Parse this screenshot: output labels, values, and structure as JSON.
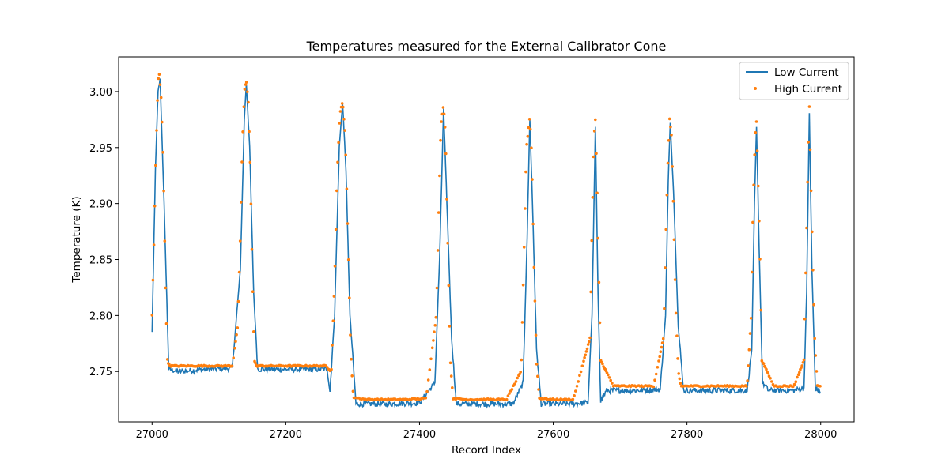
{
  "chart_data": {
    "type": "line",
    "title": "Temperatures measured for the External Calibrator Cone",
    "xlabel": "Record Index",
    "ylabel": "Temperature (K)",
    "xlim": [
      26950,
      28050
    ],
    "ylim": [
      2.705,
      3.031
    ],
    "x_ticks": [
      27000,
      27200,
      27400,
      27600,
      27800,
      28000
    ],
    "y_ticks": [
      2.75,
      2.8,
      2.85,
      2.9,
      2.95,
      3.0
    ],
    "x_tick_labels": [
      "27000",
      "27200",
      "27400",
      "27600",
      "27800",
      "28000"
    ],
    "y_tick_labels": [
      "2.75",
      "2.80",
      "2.85",
      "2.90",
      "2.95",
      "3.00"
    ],
    "grid": false,
    "legend_position": "top-right",
    "peak_indices": [
      27011,
      27141,
      27285,
      27436,
      27565,
      27663,
      27775,
      27904,
      27983
    ],
    "series": [
      {
        "name": "Low Current",
        "style": "line",
        "color": "#1f77b4",
        "x": [
          27000,
          27005,
          27009,
          27012,
          27018,
          27025,
          27040,
          27080,
          27120,
          27132,
          27138,
          27141,
          27146,
          27152,
          27158,
          27180,
          27220,
          27262,
          27266,
          27273,
          27280,
          27285,
          27290,
          27296,
          27305,
          27350,
          27400,
          27423,
          27430,
          27436,
          27441,
          27448,
          27455,
          27500,
          27540,
          27555,
          27561,
          27565,
          27569,
          27575,
          27582,
          27620,
          27652,
          27658,
          27663,
          27667,
          27671,
          27680,
          27720,
          27760,
          27768,
          27772,
          27775,
          27780,
          27787,
          27795,
          27850,
          27890,
          27897,
          27901,
          27904,
          27908,
          27913,
          27922,
          27960,
          27975,
          27979,
          27983,
          27987,
          27992,
          28000
        ],
        "y": [
          2.785,
          2.93,
          3.0,
          3.011,
          2.9,
          2.752,
          2.75,
          2.752,
          2.753,
          2.84,
          2.975,
          3.007,
          2.95,
          2.82,
          2.752,
          2.752,
          2.752,
          2.752,
          2.732,
          2.8,
          2.95,
          2.99,
          2.93,
          2.8,
          2.721,
          2.721,
          2.722,
          2.74,
          2.85,
          2.984,
          2.9,
          2.78,
          2.721,
          2.721,
          2.721,
          2.74,
          2.87,
          2.975,
          2.9,
          2.77,
          2.721,
          2.721,
          2.722,
          2.8,
          2.968,
          2.82,
          2.724,
          2.733,
          2.733,
          2.734,
          2.8,
          2.92,
          2.973,
          2.91,
          2.79,
          2.733,
          2.733,
          2.733,
          2.77,
          2.9,
          2.968,
          2.86,
          2.74,
          2.733,
          2.733,
          2.735,
          2.82,
          2.98,
          2.84,
          2.735,
          2.732
        ]
      },
      {
        "name": "High Current",
        "style": "scatter",
        "color": "#ff7f0e",
        "x": [
          27000,
          27003,
          27006,
          27009,
          27011,
          27014,
          27017,
          27020,
          27023,
          27026,
          27040,
          27060,
          27080,
          27100,
          27120,
          27128,
          27132,
          27135,
          27138,
          27141,
          27144,
          27147,
          27150,
          27153,
          27156,
          27170,
          27200,
          27230,
          27260,
          27268,
          27273,
          27277,
          27281,
          27285,
          27289,
          27293,
          27297,
          27301,
          27320,
          27350,
          27380,
          27410,
          27425,
          27429,
          27432,
          27436,
          27439,
          27442,
          27446,
          27450,
          27470,
          27500,
          27530,
          27552,
          27556,
          27560,
          27565,
          27568,
          27571,
          27575,
          27579,
          27600,
          27630,
          27655,
          27658,
          27661,
          27663,
          27665,
          27668,
          27671,
          27690,
          27720,
          27750,
          27765,
          27768,
          27771,
          27774,
          27777,
          27780,
          27783,
          27787,
          27791,
          27820,
          27860,
          27890,
          27896,
          27899,
          27902,
          27904,
          27906,
          27909,
          27912,
          27930,
          27960,
          27975,
          27978,
          27981,
          27983,
          27985,
          27988,
          27991,
          27995,
          28000
        ],
        "y": [
          2.8,
          2.87,
          2.95,
          3.01,
          3.016,
          2.99,
          2.93,
          2.83,
          2.76,
          2.755,
          2.755,
          2.755,
          2.755,
          2.755,
          2.755,
          2.79,
          2.87,
          2.95,
          3.0,
          3.01,
          2.99,
          2.93,
          2.84,
          2.76,
          2.755,
          2.755,
          2.755,
          2.755,
          2.755,
          2.75,
          2.83,
          2.93,
          2.98,
          2.992,
          2.96,
          2.87,
          2.77,
          2.727,
          2.725,
          2.725,
          2.725,
          2.726,
          2.8,
          2.9,
          2.97,
          2.988,
          2.96,
          2.87,
          2.76,
          2.726,
          2.725,
          2.725,
          2.725,
          2.75,
          2.85,
          2.95,
          2.978,
          2.94,
          2.85,
          2.76,
          2.726,
          2.725,
          2.725,
          2.78,
          2.88,
          2.96,
          2.975,
          2.93,
          2.84,
          2.76,
          2.737,
          2.737,
          2.737,
          2.78,
          2.86,
          2.93,
          2.976,
          2.96,
          2.89,
          2.81,
          2.75,
          2.737,
          2.737,
          2.737,
          2.737,
          2.8,
          2.9,
          2.96,
          2.974,
          2.93,
          2.86,
          2.76,
          2.737,
          2.737,
          2.76,
          2.85,
          2.94,
          2.986,
          2.93,
          2.85,
          2.78,
          2.738,
          2.737
        ]
      }
    ]
  }
}
